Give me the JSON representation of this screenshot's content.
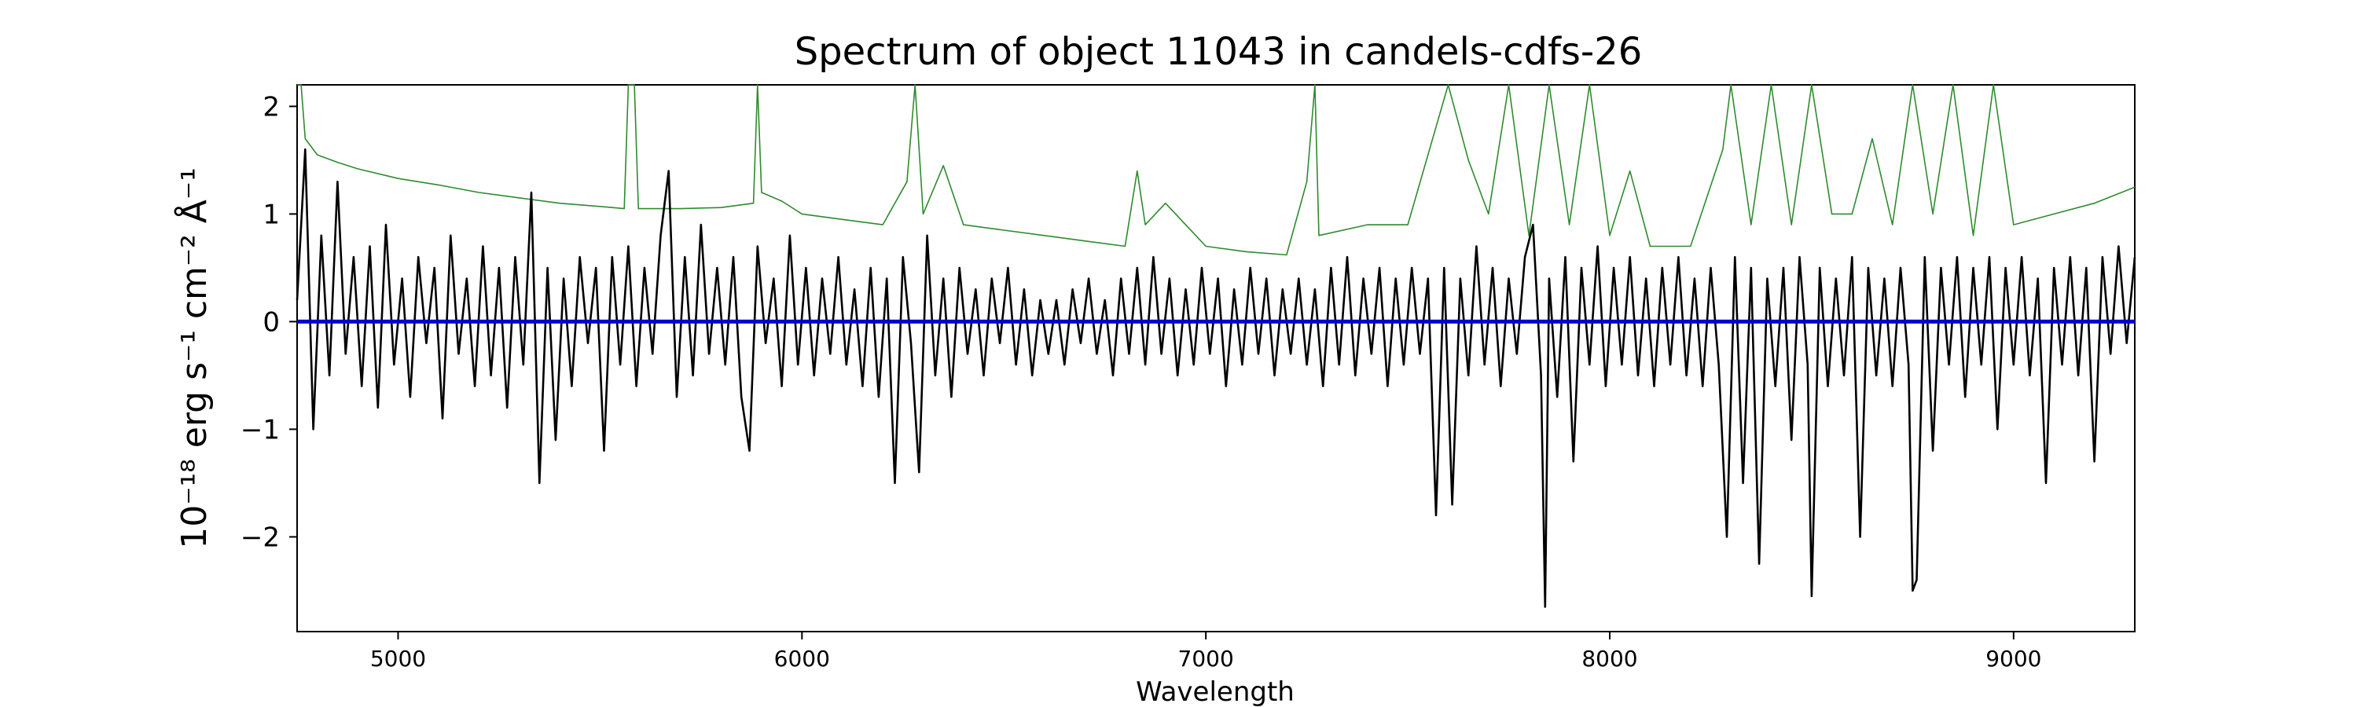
{
  "chart_data": {
    "type": "line",
    "title": "Spectrum of object 11043 in candels-cdfs-26",
    "xlabel": "Wavelength",
    "ylabel": "10⁻¹⁸ erg s⁻¹ cm⁻² Å⁻¹",
    "xlim": [
      4750,
      9300
    ],
    "ylim": [
      -2.88,
      2.2
    ],
    "x_ticks": [
      5000,
      6000,
      7000,
      8000,
      9000
    ],
    "y_ticks": [
      -2,
      -1,
      0,
      1,
      2
    ],
    "x_tick_labels": [
      "5000",
      "6000",
      "7000",
      "8000",
      "9000"
    ],
    "y_tick_labels": [
      "−2",
      "−1",
      "0",
      "1",
      "2"
    ],
    "grid": false,
    "series": [
      {
        "role": "model",
        "color": "#0000cc",
        "points": [
          [
            4750,
            0.0
          ],
          [
            9300,
            0.0
          ]
        ]
      },
      {
        "role": "noise",
        "color": "#2e8b2e",
        "points": [
          [
            4750,
            2.2
          ],
          [
            4760,
            2.2
          ],
          [
            4770,
            1.7
          ],
          [
            4800,
            1.55
          ],
          [
            4850,
            1.48
          ],
          [
            4900,
            1.42
          ],
          [
            5000,
            1.33
          ],
          [
            5100,
            1.27
          ],
          [
            5200,
            1.2
          ],
          [
            5300,
            1.15
          ],
          [
            5400,
            1.1
          ],
          [
            5500,
            1.07
          ],
          [
            5560,
            1.05
          ],
          [
            5570,
            2.2
          ],
          [
            5585,
            2.2
          ],
          [
            5595,
            1.05
          ],
          [
            5700,
            1.05
          ],
          [
            5800,
            1.06
          ],
          [
            5880,
            1.1
          ],
          [
            5890,
            2.2
          ],
          [
            5900,
            1.2
          ],
          [
            5950,
            1.12
          ],
          [
            6000,
            1.0
          ],
          [
            6100,
            0.95
          ],
          [
            6200,
            0.9
          ],
          [
            6260,
            1.3
          ],
          [
            6280,
            2.2
          ],
          [
            6300,
            1.0
          ],
          [
            6350,
            1.45
          ],
          [
            6400,
            0.9
          ],
          [
            6500,
            0.85
          ],
          [
            6600,
            0.8
          ],
          [
            6700,
            0.75
          ],
          [
            6800,
            0.7
          ],
          [
            6830,
            1.4
          ],
          [
            6850,
            0.9
          ],
          [
            6900,
            1.1
          ],
          [
            7000,
            0.7
          ],
          [
            7100,
            0.65
          ],
          [
            7200,
            0.62
          ],
          [
            7250,
            1.3
          ],
          [
            7270,
            2.2
          ],
          [
            7280,
            0.8
          ],
          [
            7400,
            0.9
          ],
          [
            7500,
            0.9
          ],
          [
            7600,
            2.2
          ],
          [
            7650,
            1.5
          ],
          [
            7700,
            1.0
          ],
          [
            7750,
            2.2
          ],
          [
            7800,
            0.8
          ],
          [
            7850,
            2.2
          ],
          [
            7900,
            0.9
          ],
          [
            7950,
            2.2
          ],
          [
            8000,
            0.8
          ],
          [
            8050,
            1.4
          ],
          [
            8100,
            0.7
          ],
          [
            8200,
            0.7
          ],
          [
            8280,
            1.6
          ],
          [
            8300,
            2.2
          ],
          [
            8350,
            0.9
          ],
          [
            8400,
            2.2
          ],
          [
            8450,
            0.9
          ],
          [
            8500,
            2.2
          ],
          [
            8550,
            1.0
          ],
          [
            8600,
            1.0
          ],
          [
            8650,
            1.7
          ],
          [
            8700,
            0.9
          ],
          [
            8750,
            2.2
          ],
          [
            8800,
            1.0
          ],
          [
            8850,
            2.2
          ],
          [
            8900,
            0.8
          ],
          [
            8950,
            2.2
          ],
          [
            9000,
            0.9
          ],
          [
            9100,
            1.0
          ],
          [
            9200,
            1.1
          ],
          [
            9300,
            1.25
          ]
        ]
      },
      {
        "role": "flux",
        "color": "#000000",
        "points": [
          [
            4750,
            0.2
          ],
          [
            4770,
            1.6
          ],
          [
            4790,
            -1.0
          ],
          [
            4810,
            0.8
          ],
          [
            4830,
            -0.5
          ],
          [
            4850,
            1.3
          ],
          [
            4870,
            -0.3
          ],
          [
            4890,
            0.6
          ],
          [
            4910,
            -0.6
          ],
          [
            4930,
            0.7
          ],
          [
            4950,
            -0.8
          ],
          [
            4970,
            0.9
          ],
          [
            4990,
            -0.4
          ],
          [
            5010,
            0.4
          ],
          [
            5030,
            -0.7
          ],
          [
            5050,
            0.6
          ],
          [
            5070,
            -0.2
          ],
          [
            5090,
            0.5
          ],
          [
            5110,
            -0.9
          ],
          [
            5130,
            0.8
          ],
          [
            5150,
            -0.3
          ],
          [
            5170,
            0.4
          ],
          [
            5190,
            -0.6
          ],
          [
            5210,
            0.7
          ],
          [
            5230,
            -0.5
          ],
          [
            5250,
            0.5
          ],
          [
            5270,
            -0.8
          ],
          [
            5290,
            0.6
          ],
          [
            5310,
            -0.4
          ],
          [
            5330,
            1.2
          ],
          [
            5350,
            -1.5
          ],
          [
            5370,
            0.5
          ],
          [
            5390,
            -1.1
          ],
          [
            5410,
            0.4
          ],
          [
            5430,
            -0.6
          ],
          [
            5450,
            0.6
          ],
          [
            5470,
            -0.2
          ],
          [
            5490,
            0.5
          ],
          [
            5510,
            -1.2
          ],
          [
            5530,
            0.6
          ],
          [
            5550,
            -0.4
          ],
          [
            5570,
            0.7
          ],
          [
            5590,
            -0.6
          ],
          [
            5610,
            0.5
          ],
          [
            5630,
            -0.3
          ],
          [
            5650,
            0.8
          ],
          [
            5670,
            1.4
          ],
          [
            5690,
            -0.7
          ],
          [
            5710,
            0.6
          ],
          [
            5730,
            -0.5
          ],
          [
            5750,
            0.9
          ],
          [
            5770,
            -0.3
          ],
          [
            5790,
            0.5
          ],
          [
            5810,
            -0.4
          ],
          [
            5830,
            0.6
          ],
          [
            5850,
            -0.7
          ],
          [
            5870,
            -1.2
          ],
          [
            5890,
            0.7
          ],
          [
            5910,
            -0.2
          ],
          [
            5930,
            0.4
          ],
          [
            5950,
            -0.6
          ],
          [
            5970,
            0.8
          ],
          [
            5990,
            -0.4
          ],
          [
            6010,
            0.5
          ],
          [
            6030,
            -0.5
          ],
          [
            6050,
            0.4
          ],
          [
            6070,
            -0.3
          ],
          [
            6090,
            0.6
          ],
          [
            6110,
            -0.4
          ],
          [
            6130,
            0.3
          ],
          [
            6150,
            -0.6
          ],
          [
            6170,
            0.5
          ],
          [
            6190,
            -0.7
          ],
          [
            6210,
            0.4
          ],
          [
            6230,
            -1.5
          ],
          [
            6250,
            0.6
          ],
          [
            6270,
            -0.2
          ],
          [
            6290,
            -1.4
          ],
          [
            6310,
            0.8
          ],
          [
            6330,
            -0.5
          ],
          [
            6350,
            0.4
          ],
          [
            6370,
            -0.7
          ],
          [
            6390,
            0.5
          ],
          [
            6410,
            -0.3
          ],
          [
            6430,
            0.3
          ],
          [
            6450,
            -0.5
          ],
          [
            6470,
            0.4
          ],
          [
            6490,
            -0.2
          ],
          [
            6510,
            0.5
          ],
          [
            6530,
            -0.4
          ],
          [
            6550,
            0.3
          ],
          [
            6570,
            -0.5
          ],
          [
            6590,
            0.2
          ],
          [
            6610,
            -0.3
          ],
          [
            6630,
            0.2
          ],
          [
            6650,
            -0.4
          ],
          [
            6670,
            0.3
          ],
          [
            6690,
            -0.2
          ],
          [
            6710,
            0.4
          ],
          [
            6730,
            -0.3
          ],
          [
            6750,
            0.2
          ],
          [
            6770,
            -0.5
          ],
          [
            6790,
            0.4
          ],
          [
            6810,
            -0.3
          ],
          [
            6830,
            0.5
          ],
          [
            6850,
            -0.4
          ],
          [
            6870,
            0.6
          ],
          [
            6890,
            -0.3
          ],
          [
            6910,
            0.4
          ],
          [
            6930,
            -0.5
          ],
          [
            6950,
            0.3
          ],
          [
            6970,
            -0.4
          ],
          [
            6990,
            0.5
          ],
          [
            7010,
            -0.3
          ],
          [
            7030,
            0.4
          ],
          [
            7050,
            -0.6
          ],
          [
            7070,
            0.3
          ],
          [
            7090,
            -0.4
          ],
          [
            7110,
            0.5
          ],
          [
            7130,
            -0.3
          ],
          [
            7150,
            0.4
          ],
          [
            7170,
            -0.5
          ],
          [
            7190,
            0.3
          ],
          [
            7210,
            -0.3
          ],
          [
            7230,
            0.4
          ],
          [
            7250,
            -0.4
          ],
          [
            7270,
            0.3
          ],
          [
            7290,
            -0.6
          ],
          [
            7310,
            0.5
          ],
          [
            7330,
            -0.4
          ],
          [
            7350,
            0.6
          ],
          [
            7370,
            -0.5
          ],
          [
            7390,
            0.4
          ],
          [
            7410,
            -0.3
          ],
          [
            7430,
            0.5
          ],
          [
            7450,
            -0.6
          ],
          [
            7470,
            0.4
          ],
          [
            7490,
            -0.4
          ],
          [
            7510,
            0.5
          ],
          [
            7530,
            -0.3
          ],
          [
            7550,
            0.4
          ],
          [
            7570,
            -1.8
          ],
          [
            7590,
            0.5
          ],
          [
            7610,
            -1.7
          ],
          [
            7630,
            0.4
          ],
          [
            7650,
            -0.5
          ],
          [
            7670,
            0.7
          ],
          [
            7690,
            -0.4
          ],
          [
            7710,
            0.5
          ],
          [
            7730,
            -0.6
          ],
          [
            7750,
            0.4
          ],
          [
            7770,
            -0.3
          ],
          [
            7790,
            0.6
          ],
          [
            7810,
            0.9
          ],
          [
            7830,
            -0.5
          ],
          [
            7840,
            -2.65
          ],
          [
            7850,
            0.4
          ],
          [
            7870,
            -0.7
          ],
          [
            7890,
            0.6
          ],
          [
            7910,
            -1.3
          ],
          [
            7930,
            0.5
          ],
          [
            7950,
            -0.4
          ],
          [
            7970,
            0.7
          ],
          [
            7990,
            -0.6
          ],
          [
            8010,
            0.5
          ],
          [
            8030,
            -0.4
          ],
          [
            8050,
            0.6
          ],
          [
            8070,
            -0.5
          ],
          [
            8090,
            0.4
          ],
          [
            8110,
            -0.6
          ],
          [
            8130,
            0.5
          ],
          [
            8150,
            -0.4
          ],
          [
            8170,
            0.6
          ],
          [
            8190,
            -0.5
          ],
          [
            8210,
            0.4
          ],
          [
            8230,
            -0.6
          ],
          [
            8250,
            0.5
          ],
          [
            8270,
            -0.4
          ],
          [
            8290,
            -2.0
          ],
          [
            8310,
            0.6
          ],
          [
            8330,
            -1.5
          ],
          [
            8350,
            0.5
          ],
          [
            8370,
            -2.25
          ],
          [
            8390,
            0.4
          ],
          [
            8410,
            -0.6
          ],
          [
            8430,
            0.5
          ],
          [
            8450,
            -1.1
          ],
          [
            8470,
            0.6
          ],
          [
            8490,
            -0.4
          ],
          [
            8500,
            -2.55
          ],
          [
            8520,
            0.5
          ],
          [
            8540,
            -0.6
          ],
          [
            8560,
            0.4
          ],
          [
            8580,
            -0.5
          ],
          [
            8600,
            0.6
          ],
          [
            8620,
            -2.0
          ],
          [
            8640,
            0.5
          ],
          [
            8660,
            -0.5
          ],
          [
            8680,
            0.4
          ],
          [
            8700,
            -0.6
          ],
          [
            8720,
            0.5
          ],
          [
            8740,
            -0.4
          ],
          [
            8750,
            -2.5
          ],
          [
            8760,
            -2.4
          ],
          [
            8780,
            0.6
          ],
          [
            8800,
            -1.2
          ],
          [
            8820,
            0.5
          ],
          [
            8840,
            -0.4
          ],
          [
            8860,
            0.6
          ],
          [
            8880,
            -0.7
          ],
          [
            8900,
            0.5
          ],
          [
            8920,
            -0.4
          ],
          [
            8940,
            0.6
          ],
          [
            8960,
            -1.0
          ],
          [
            8980,
            0.5
          ],
          [
            9000,
            -0.4
          ],
          [
            9020,
            0.6
          ],
          [
            9040,
            -0.5
          ],
          [
            9060,
            0.4
          ],
          [
            9080,
            -1.5
          ],
          [
            9100,
            0.5
          ],
          [
            9120,
            -0.4
          ],
          [
            9140,
            0.6
          ],
          [
            9160,
            -0.5
          ],
          [
            9180,
            0.5
          ],
          [
            9200,
            -1.3
          ],
          [
            9220,
            0.6
          ],
          [
            9240,
            -0.3
          ],
          [
            9260,
            0.7
          ],
          [
            9280,
            -0.2
          ],
          [
            9300,
            0.6
          ]
        ]
      }
    ]
  }
}
